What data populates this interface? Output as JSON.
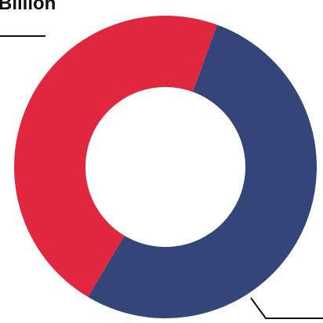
{
  "chart_data": {
    "type": "pie",
    "variant": "donut",
    "categories": [
      "",
      ""
    ],
    "values": [
      53,
      47
    ],
    "colors": [
      "#34457a",
      "#e1263f"
    ],
    "annotations": [
      "Billion"
    ]
  }
}
